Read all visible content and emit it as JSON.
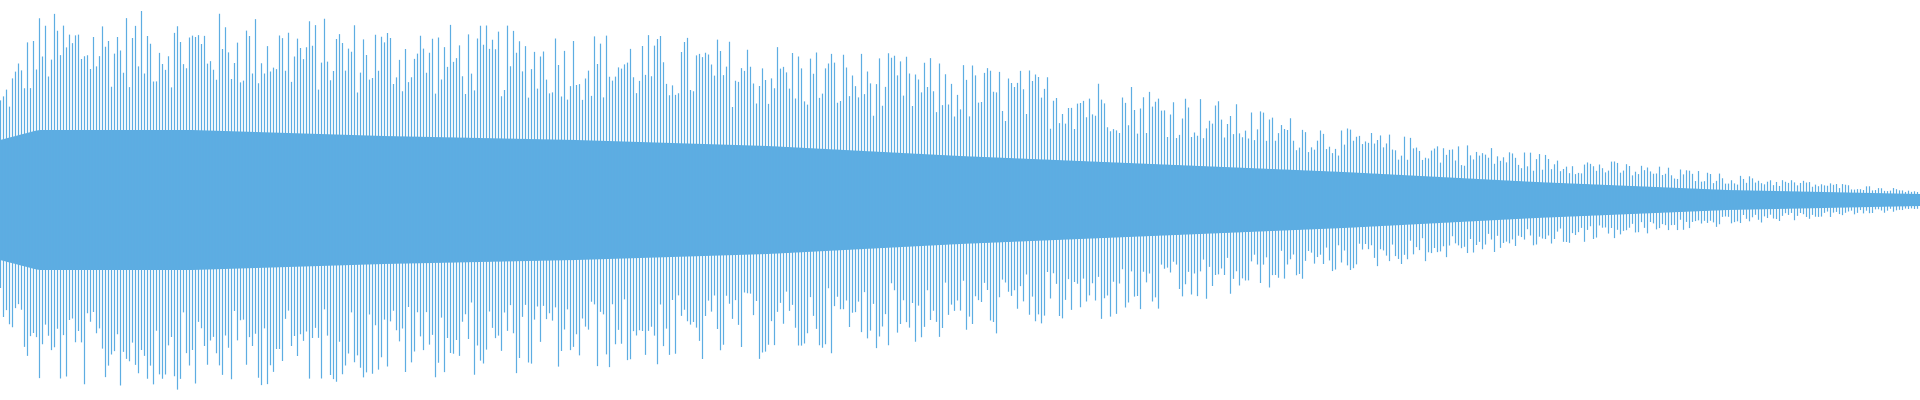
{
  "chart_data": {
    "type": "area",
    "kind": "audio-waveform",
    "color": "#5dade2",
    "background": "#ffffff",
    "axes": "none",
    "grid": false,
    "legend": "none",
    "ylim": [
      -1,
      1
    ],
    "envelope": [
      {
        "t": 0.0,
        "peak": 0.55,
        "core": 0.3
      },
      {
        "t": 0.02,
        "peak": 0.94,
        "core": 0.35
      },
      {
        "t": 0.1,
        "peak": 0.95,
        "core": 0.35
      },
      {
        "t": 0.2,
        "peak": 0.9,
        "core": 0.32
      },
      {
        "t": 0.3,
        "peak": 0.86,
        "core": 0.3
      },
      {
        "t": 0.4,
        "peak": 0.8,
        "core": 0.27
      },
      {
        "t": 0.5,
        "peak": 0.7,
        "core": 0.22
      },
      {
        "t": 0.6,
        "peak": 0.58,
        "core": 0.18
      },
      {
        "t": 0.7,
        "peak": 0.36,
        "core": 0.14
      },
      {
        "t": 0.8,
        "peak": 0.24,
        "core": 0.09
      },
      {
        "t": 0.9,
        "peak": 0.13,
        "core": 0.05
      },
      {
        "t": 1.0,
        "peak": 0.05,
        "core": 0.03
      }
    ]
  }
}
